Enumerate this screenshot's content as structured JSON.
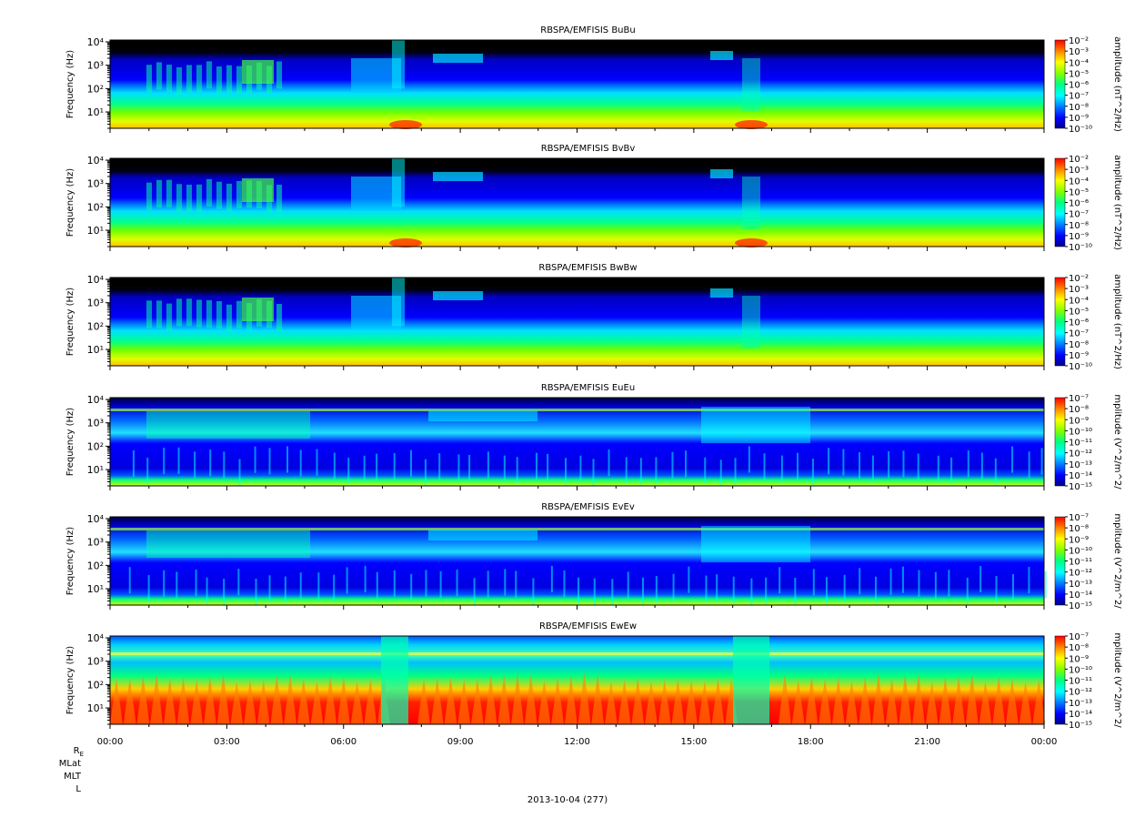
{
  "chart_data": [
    {
      "type": "heatmap",
      "title": "RBSPA/EMFISIS  BuBu",
      "ylabel": "Frequency (Hz)",
      "colorbar_label": "amplitude (nT^2/Hz)",
      "colorbar_ticks": [
        "10⁻²",
        "10⁻³",
        "10⁻⁴",
        "10⁻⁵",
        "10⁻⁶",
        "10⁻⁷",
        "10⁻⁸",
        "10⁻⁹",
        "10⁻¹⁰"
      ],
      "y_ticks": [
        "10⁴",
        "10³",
        "10²",
        "10¹"
      ],
      "ylim": [
        2,
        12000
      ],
      "log_y": true,
      "colorbar_range": [
        1e-10,
        0.01
      ]
    },
    {
      "type": "heatmap",
      "title": "RBSPA/EMFISIS  BvBv",
      "ylabel": "Frequency (Hz)",
      "colorbar_label": "amplitude (nT^2/Hz)",
      "colorbar_ticks": [
        "10⁻²",
        "10⁻³",
        "10⁻⁴",
        "10⁻⁵",
        "10⁻⁶",
        "10⁻⁷",
        "10⁻⁸",
        "10⁻⁹",
        "10⁻¹⁰"
      ],
      "y_ticks": [
        "10⁴",
        "10³",
        "10²",
        "10¹"
      ],
      "ylim": [
        2,
        12000
      ],
      "log_y": true,
      "colorbar_range": [
        1e-10,
        0.01
      ]
    },
    {
      "type": "heatmap",
      "title": "RBSPA/EMFISIS  BwBw",
      "ylabel": "Frequency (Hz)",
      "colorbar_label": "amplitude (nT^2/Hz)",
      "colorbar_ticks": [
        "10⁻²",
        "10⁻³",
        "10⁻⁴",
        "10⁻⁵",
        "10⁻⁶",
        "10⁻⁷",
        "10⁻⁸",
        "10⁻⁹",
        "10⁻¹⁰"
      ],
      "y_ticks": [
        "10⁴",
        "10³",
        "10²",
        "10¹"
      ],
      "ylim": [
        2,
        12000
      ],
      "log_y": true,
      "colorbar_range": [
        1e-10,
        0.01
      ]
    },
    {
      "type": "heatmap",
      "title": "RBSPA/EMFISIS  EuEu",
      "ylabel": "Frequency (Hz)",
      "colorbar_label": "mplitude (V^2/m^2/",
      "colorbar_ticks": [
        "10⁻⁷",
        "10⁻⁸",
        "10⁻⁹",
        "10⁻¹⁰",
        "10⁻¹¹",
        "10⁻¹²",
        "10⁻¹³",
        "10⁻¹⁴",
        "10⁻¹⁵"
      ],
      "y_ticks": [
        "10⁴",
        "10³",
        "10²",
        "10¹"
      ],
      "ylim": [
        2,
        12000
      ],
      "log_y": true,
      "colorbar_range": [
        1e-15,
        1e-07
      ]
    },
    {
      "type": "heatmap",
      "title": "RBSPA/EMFISIS  EvEv",
      "ylabel": "Frequency (Hz)",
      "colorbar_label": "mplitude (V^2/m^2/",
      "colorbar_ticks": [
        "10⁻⁷",
        "10⁻⁸",
        "10⁻⁹",
        "10⁻¹⁰",
        "10⁻¹¹",
        "10⁻¹²",
        "10⁻¹³",
        "10⁻¹⁴",
        "10⁻¹⁵"
      ],
      "y_ticks": [
        "10⁴",
        "10³",
        "10²",
        "10¹"
      ],
      "ylim": [
        2,
        12000
      ],
      "log_y": true,
      "colorbar_range": [
        1e-15,
        1e-07
      ]
    },
    {
      "type": "heatmap",
      "title": "RBSPA/EMFISIS  EwEw",
      "ylabel": "Frequency (Hz)",
      "colorbar_label": "mplitude (V^2/m^2/",
      "colorbar_ticks": [
        "10⁻⁷",
        "10⁻⁸",
        "10⁻⁹",
        "10⁻¹⁰",
        "10⁻¹¹",
        "10⁻¹²",
        "10⁻¹³",
        "10⁻¹⁴",
        "10⁻¹⁵"
      ],
      "y_ticks": [
        "10⁴",
        "10³",
        "10²",
        "10¹"
      ],
      "ylim": [
        2,
        12000
      ],
      "log_y": true,
      "colorbar_range": [
        1e-15,
        1e-07
      ]
    }
  ],
  "x_axis": {
    "tick_labels": [
      "00:00",
      "03:00",
      "06:00",
      "09:00",
      "12:00",
      "15:00",
      "18:00",
      "21:00",
      "00:00"
    ],
    "xlim_hours": [
      0,
      24
    ]
  },
  "ephemeris_labels": [
    "R",
    "MLat",
    "MLT",
    "L"
  ],
  "ephemeris_re_subscript": "E",
  "date_label": "2013-10-04 (277)",
  "colors": {
    "colormap": [
      "#00008b",
      "#0000ff",
      "#0080ff",
      "#00ffff",
      "#00ff80",
      "#80ff00",
      "#ffff00",
      "#ff8000",
      "#ff0000"
    ],
    "no_data": "#000000"
  }
}
